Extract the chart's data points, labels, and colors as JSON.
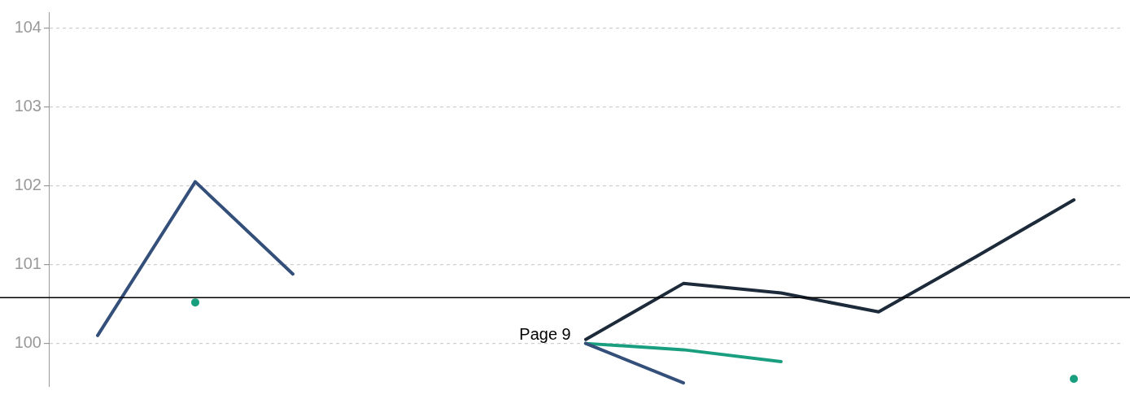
{
  "chart_data": {
    "type": "line",
    "categories": [
      null,
      null,
      null,
      null,
      null,
      null,
      null,
      null,
      null,
      null,
      null
    ],
    "series": [
      {
        "color": "#34507a",
        "values": [
          100.1,
          102.05,
          100.88,
          null,
          null,
          100.0,
          99.5,
          null,
          null,
          null,
          null
        ]
      },
      {
        "color": "#1a9e80",
        "values": [
          null,
          100.52,
          null,
          null,
          null,
          100.0,
          99.92,
          99.77,
          null,
          null,
          99.55
        ]
      },
      {
        "color": "#1c2a3a",
        "values": [
          null,
          null,
          null,
          null,
          null,
          100.05,
          100.76,
          100.64,
          100.4,
          101.1,
          101.82
        ]
      }
    ],
    "ylim": [
      99.45,
      104.2
    ],
    "yticks": [
      100,
      101,
      102,
      103,
      104
    ],
    "grid": "y",
    "tick_labels": "y",
    "marker": "none",
    "line_style": "solid",
    "legend": false,
    "ref_lines": [
      {
        "axis": "y",
        "value": 100.58,
        "color": "#000000"
      }
    ],
    "annotations": [
      "Page 9"
    ]
  }
}
